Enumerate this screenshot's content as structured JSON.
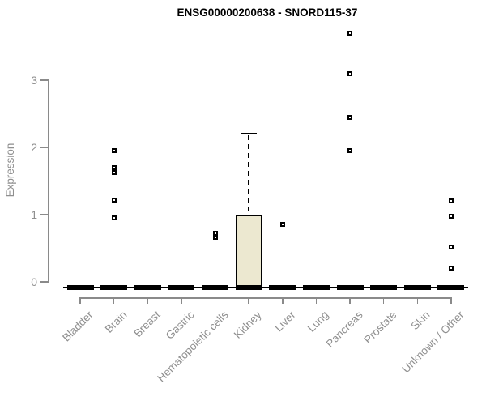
{
  "chart_data": {
    "type": "boxplot",
    "title": "ENSG00000200638 - SNORD115-37",
    "ylabel": "Expression",
    "xlabel": "",
    "yticks": [
      0,
      1,
      2,
      3
    ],
    "ylim": [
      0,
      3.8
    ],
    "grid": false,
    "legend_position": "none",
    "categories": [
      "Bladder",
      "Brain",
      "Breast",
      "Gastric",
      "Hematopoietic cells",
      "Kidney",
      "Liver",
      "Lung",
      "Pancreas",
      "Prostate",
      "Skin",
      "Unknown / Other"
    ],
    "series": [
      {
        "category": "Bladder",
        "q1": 0,
        "median": 0,
        "q3": 0,
        "whisker_low": 0,
        "whisker_high": 0,
        "outliers": []
      },
      {
        "category": "Brain",
        "q1": 0,
        "median": 0,
        "q3": 0,
        "whisker_low": 0,
        "whisker_high": 0,
        "outliers": [
          1.95,
          1.7,
          1.63,
          1.22,
          0.95
        ]
      },
      {
        "category": "Breast",
        "q1": 0,
        "median": 0,
        "q3": 0,
        "whisker_low": 0,
        "whisker_high": 0,
        "outliers": []
      },
      {
        "category": "Gastric",
        "q1": 0,
        "median": 0,
        "q3": 0,
        "whisker_low": 0,
        "whisker_high": 0,
        "outliers": []
      },
      {
        "category": "Hematopoietic cells",
        "q1": 0,
        "median": 0,
        "q3": 0,
        "whisker_low": 0,
        "whisker_high": 0,
        "outliers": [
          0.72,
          0.66
        ]
      },
      {
        "category": "Kidney",
        "q1": 0,
        "median": 0,
        "q3": 1.0,
        "whisker_low": 0,
        "whisker_high": 2.2,
        "outliers": []
      },
      {
        "category": "Liver",
        "q1": 0,
        "median": 0,
        "q3": 0,
        "whisker_low": 0,
        "whisker_high": 0,
        "outliers": [
          0.85
        ]
      },
      {
        "category": "Lung",
        "q1": 0,
        "median": 0,
        "q3": 0,
        "whisker_low": 0,
        "whisker_high": 0,
        "outliers": []
      },
      {
        "category": "Pancreas",
        "q1": 0,
        "median": 0,
        "q3": 0,
        "whisker_low": 0,
        "whisker_high": 0,
        "outliers": [
          3.7,
          3.1,
          2.45,
          1.95
        ]
      },
      {
        "category": "Prostate",
        "q1": 0,
        "median": 0,
        "q3": 0,
        "whisker_low": 0,
        "whisker_high": 0,
        "outliers": []
      },
      {
        "category": "Skin",
        "q1": 0,
        "median": 0,
        "q3": 0,
        "whisker_low": 0,
        "whisker_high": 0,
        "outliers": []
      },
      {
        "category": "Unknown / Other",
        "q1": 0,
        "median": 0,
        "q3": 0,
        "whisker_low": 0,
        "whisker_high": 0,
        "outliers": [
          1.2,
          0.97,
          0.52,
          0.2
        ]
      }
    ],
    "colors": {
      "box_fill": "#ece8d0",
      "box_stroke": "#000000",
      "axis": "#8a8a8a",
      "tick_label": "#8f8f8f",
      "title": "#000000",
      "background": "#ffffff"
    }
  }
}
